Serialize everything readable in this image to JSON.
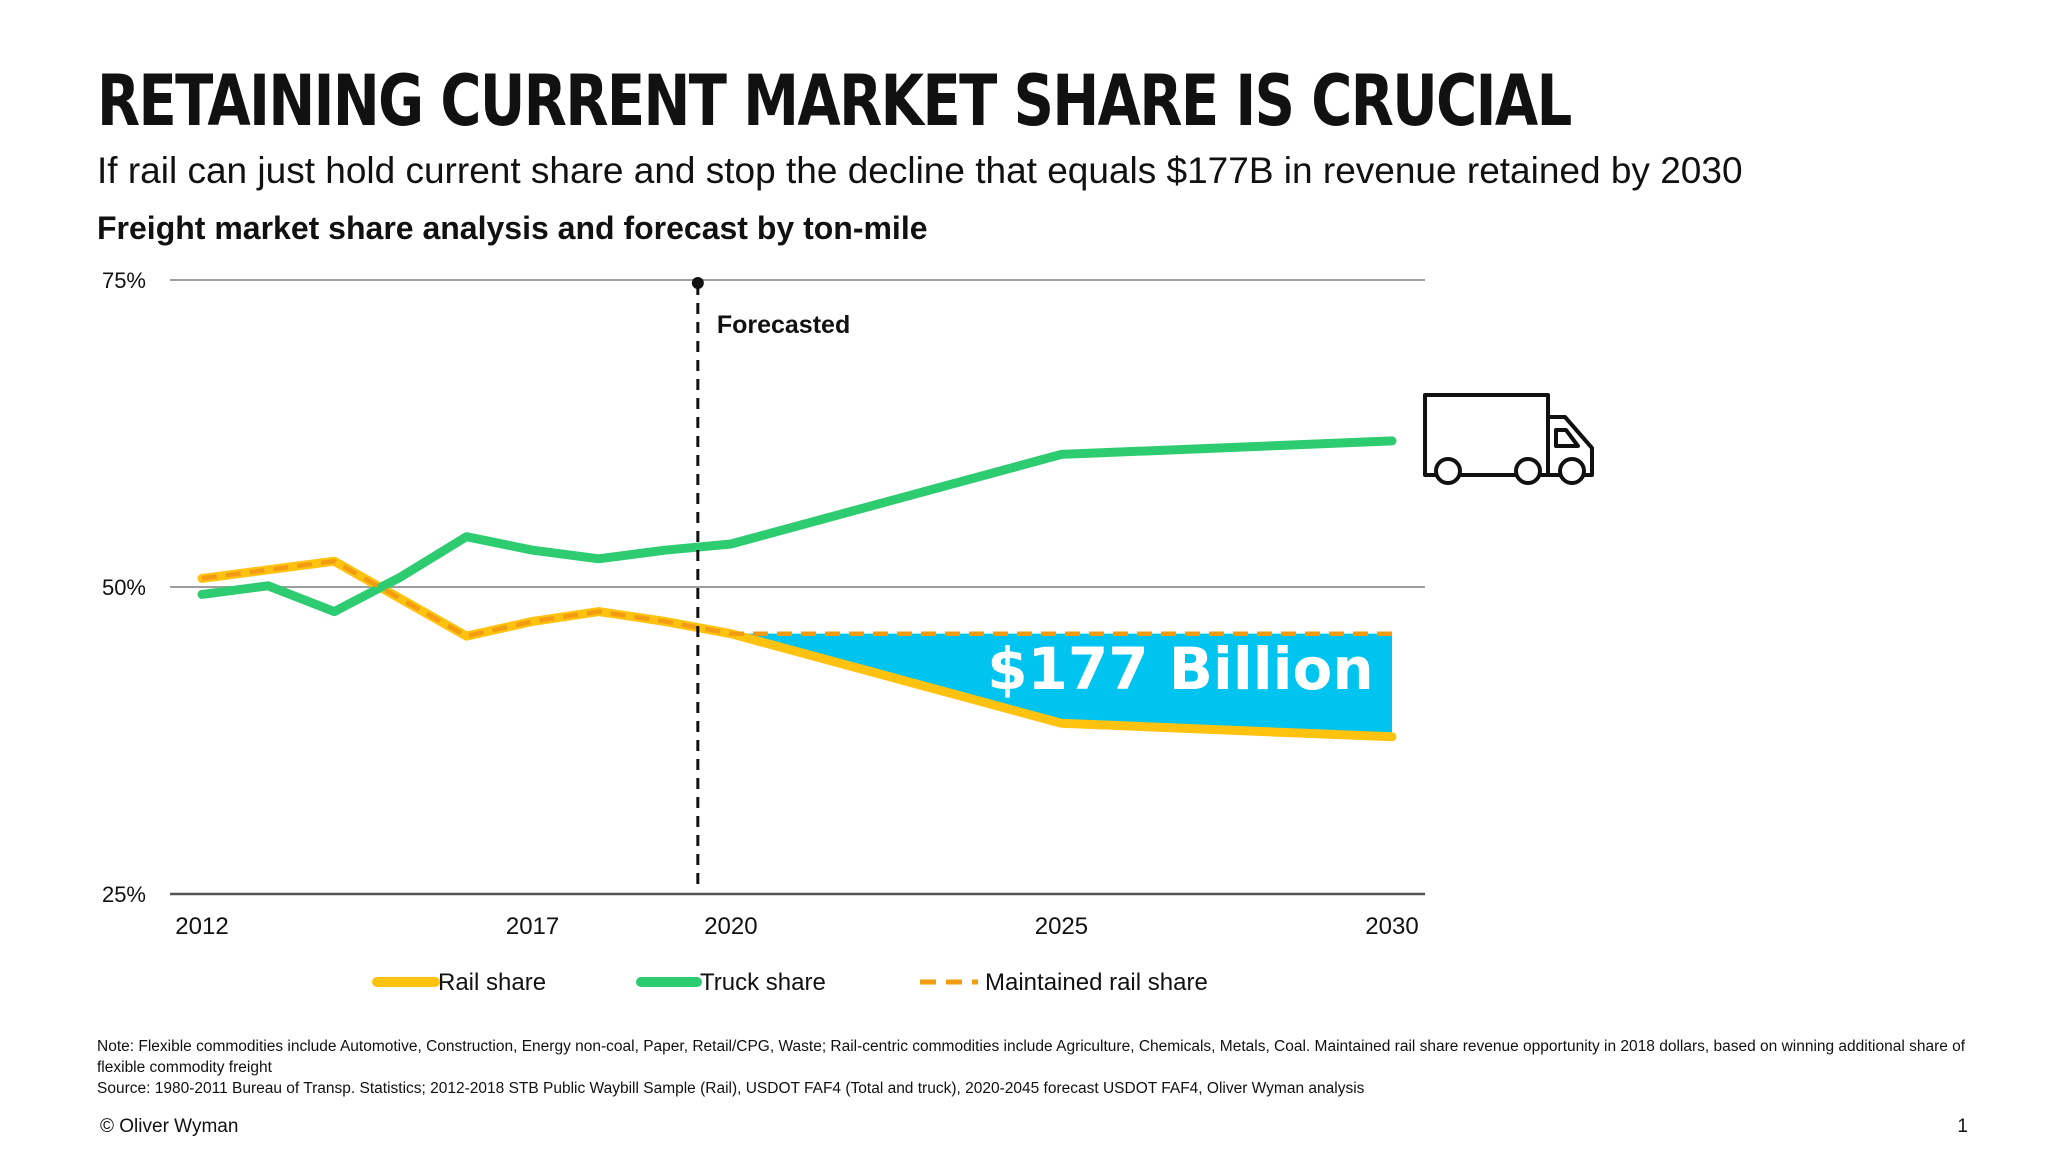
{
  "title": "RETAINING CURRENT MARKET SHARE IS CRUCIAL",
  "subtitle": "If rail can just hold current share and stop the decline that equals $177B in revenue retained by 2030",
  "chart_heading": "Freight market share analysis and forecast by ton-mile",
  "chart_data": {
    "type": "line",
    "x_ticks": [
      "2012",
      "2017",
      "2020",
      "2025",
      "2030"
    ],
    "y_ticks": [
      "75%",
      "50%",
      "25%"
    ],
    "ylim": [
      25,
      75
    ],
    "xlim": [
      2011.8,
      2030.5
    ],
    "forecast_start_year": 2019.5,
    "forecast_label": "Forecasted",
    "series": [
      {
        "name": "Rail share",
        "style": "solid",
        "color": "#FFC20E",
        "x": [
          2012,
          2014,
          2016,
          2017,
          2018,
          2019,
          2020,
          2025,
          2030
        ],
        "y": [
          50.7,
          52.1,
          46.0,
          47.2,
          48.0,
          47.2,
          46.2,
          38.9,
          37.8
        ]
      },
      {
        "name": "Truck share",
        "style": "solid",
        "color": "#2ECC71",
        "x": [
          2012,
          2013,
          2014,
          2015,
          2016,
          2017,
          2018,
          2019,
          2020,
          2025,
          2030
        ],
        "y": [
          49.4,
          50.1,
          48.0,
          50.8,
          54.1,
          53.0,
          52.3,
          53.0,
          53.5,
          60.8,
          61.9
        ]
      },
      {
        "name": "Maintained rail share",
        "style": "dashed",
        "color": "#F39C12",
        "x": [
          2012,
          2014,
          2016,
          2017,
          2018,
          2019,
          2020,
          2025,
          2030
        ],
        "y": [
          50.7,
          52.1,
          46.0,
          47.2,
          48.0,
          47.2,
          46.2,
          46.2,
          46.2
        ]
      }
    ],
    "gap_annotation": {
      "label": "$177 Billion",
      "color": "#00C4F0",
      "from_year": 2020,
      "to_year": 2030
    }
  },
  "legend": {
    "rail": "Rail share",
    "truck": "Truck share",
    "maintained": "Maintained rail share"
  },
  "icon": "truck-icon",
  "note_line1": "Note: Flexible commodities include Automotive, Construction, Energy non-coal, Paper, Retail/CPG, Waste; Rail-centric commodities include Agriculture, Chemicals, Metals, Coal. Maintained rail share revenue opportunity in 2018 dollars, based on winning additional share of flexible commodity freight",
  "note_line2": "Source: 1980-2011 Bureau of Transp. Statistics; 2012-2018 STB Public Waybill Sample (Rail), USDOT FAF4 (Total and truck), 2020-2045 forecast USDOT FAF4, Oliver Wyman analysis",
  "copyright": "© Oliver Wyman",
  "page_number": "1"
}
